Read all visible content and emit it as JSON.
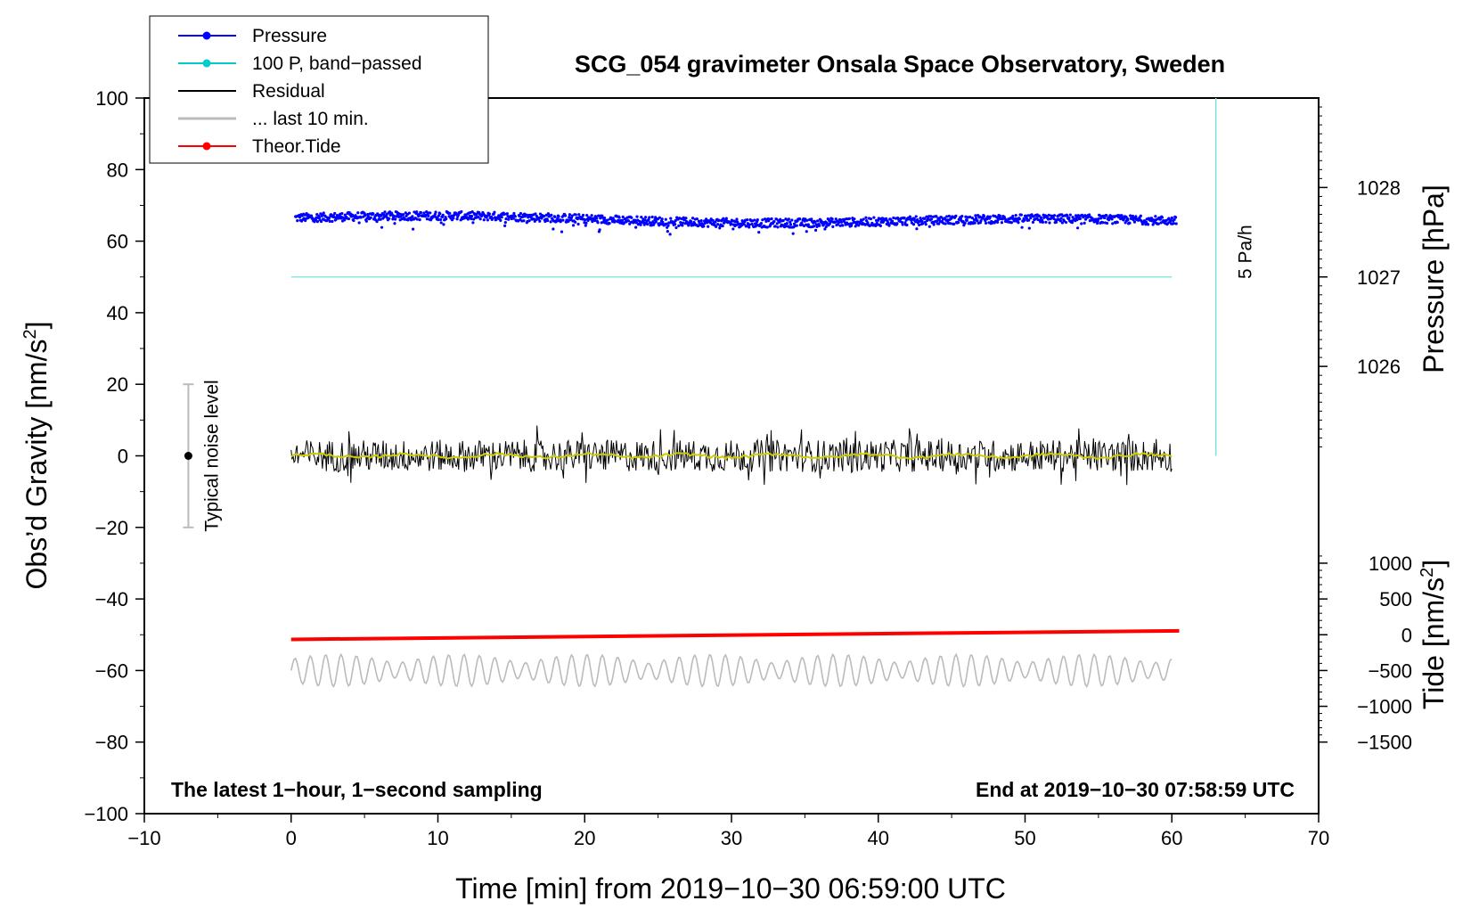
{
  "chart_data": {
    "type": "line",
    "title": "SCG_054 gravimeter Onsala Space Observatory, Sweden",
    "xlabel": "Time [min] from 2019−10−30 06:59:00 UTC",
    "ylabel_left": "Obs’d Gravity [nm/s",
    "ylabel_left_sup": "2",
    "ylabel_left_end": "]",
    "ylabel_pressure": "Pressure [hPa]",
    "ylabel_tide": "Tide [nm/s",
    "ylabel_tide_sup": "2",
    "ylabel_tide_end": "]",
    "xlim": [
      -10,
      70
    ],
    "ylim": [
      -100,
      100
    ],
    "x_ticks": [
      "−10",
      "0",
      "10",
      "20",
      "30",
      "40",
      "50",
      "60",
      "70"
    ],
    "x_tick_values": [
      -10,
      0,
      10,
      20,
      30,
      40,
      50,
      60,
      70
    ],
    "y_ticks": [
      "100",
      "80",
      "60",
      "40",
      "20",
      "0",
      "−20",
      "−40",
      "−60",
      "−80",
      "−100"
    ],
    "y_tick_values": [
      100,
      80,
      60,
      40,
      20,
      0,
      -20,
      -40,
      -60,
      -80,
      -100
    ],
    "pressure_ticks": [
      "1028",
      "1027",
      "1026"
    ],
    "pressure_tick_values": [
      1028,
      1027,
      1026
    ],
    "pressure_axis": {
      "gravity_at_1027": 50,
      "gravity_per_hpa": 25
    },
    "tide_ticks": [
      "1000",
      "500",
      "0",
      "−500",
      "−1000",
      "−1500"
    ],
    "tide_tick_values": [
      1000,
      500,
      0,
      -500,
      -1000,
      -1500
    ],
    "tide_axis": {
      "gravity_at_zero": -50,
      "gravity_per_unit": 0.02
    },
    "legend": [
      {
        "label": "Pressure",
        "color": "#0000ff",
        "style": "line-dot"
      },
      {
        "label": "100 P, band−passed",
        "color": "#00cccc",
        "style": "line-dot"
      },
      {
        "label": "Residual",
        "color": "#000000",
        "style": "line"
      },
      {
        "label": "... last 10 min.",
        "color": "#bbbbbb",
        "style": "line"
      },
      {
        "label": "Theor.Tide",
        "color": "#ff0000",
        "style": "line-dot"
      }
    ],
    "annotations": {
      "bottom_left": "The latest 1−hour, 1−second sampling",
      "bottom_right": "End at 2019−10−30 07:58:59 UTC",
      "noise_label": "Typical noise level",
      "rate_label": "5 Pa/h"
    },
    "noise_bar": {
      "x": -7,
      "center": 0,
      "low": -20,
      "high": 20
    },
    "rate_bar": {
      "x": 63,
      "from": 0,
      "to": 100
    },
    "series": [
      {
        "name": "Pressure",
        "color": "#0000ff",
        "x_range": [
          0.3,
          60.3
        ],
        "y_start": 66.5,
        "y_end": 65.3,
        "noise": 1.2,
        "points": 1440
      },
      {
        "name": "100 P, band−passed",
        "color": "#00cccc",
        "x_range": [
          0,
          60
        ],
        "values": [
          50,
          50
        ]
      },
      {
        "name": "Residual",
        "color": "#000000",
        "x_range": [
          0,
          60
        ],
        "center": 0,
        "amplitude": 4.5,
        "points": 900
      },
      {
        "name": "Residual smoothed",
        "color": "#cccc00",
        "x_range": [
          0,
          60
        ],
        "center": 0,
        "amplitude": 0.8
      },
      {
        "name": "... last 10 min.",
        "color": "#bbbbbb",
        "x_range": [
          0,
          60
        ],
        "center": -60,
        "amplitude": 4.5
      },
      {
        "name": "Theor.Tide",
        "color": "#ff0000",
        "x_range": [
          0,
          60.5
        ],
        "y_start": -51.3,
        "y_end": -48.9
      }
    ]
  }
}
